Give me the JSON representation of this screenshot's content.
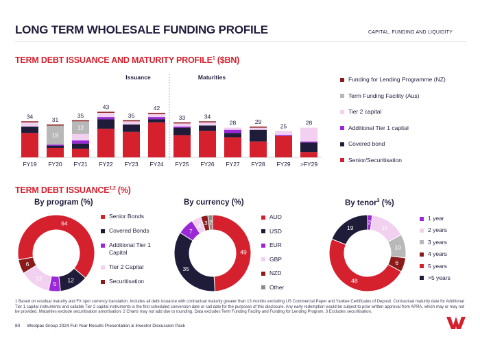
{
  "header": {
    "title": "LONG TERM WHOLESALE FUNDING PROFILE",
    "section": "CAPITAL, FUNDING AND LIQUIDITY"
  },
  "profile": {
    "heading": "TERM DEBT ISSUANCE AND MATURITY PROFILE",
    "heading_sup": "1",
    "heading_unit": " ($BN)",
    "issuance_label": "Issuance",
    "maturities_label": "Maturities"
  },
  "colors": {
    "senior": "#d5202e",
    "covered": "#1f1c3a",
    "at1": "#9a28d6",
    "tier2": "#f2d0f0",
    "tfp": "#b8b8b8",
    "fflp": "#8b1a1a",
    "securitisation": "#8b1a1a",
    "aud": "#d5202e",
    "usd": "#1f1c3a",
    "eur": "#9a28d6",
    "gbp": "#f2d0f0",
    "nzd": "#8b1a1a",
    "other": "#8c8c8c",
    "y1": "#9a28d6",
    "y2": "#f2d0f0",
    "y3": "#b8b8b8",
    "y4": "#8b1a1a",
    "y5": "#d5202e",
    "y5p": "#1f1c3a"
  },
  "chart_data": [
    {
      "type": "bar",
      "stacked": true,
      "title": "TERM DEBT ISSUANCE AND MATURITY PROFILE ($BN)",
      "categories": [
        "FY19",
        "FY20",
        "FY21",
        "FY22",
        "FY23",
        "FY24",
        "FY25",
        "FY26",
        "FY27",
        "FY28",
        "FY29",
        ">FY29"
      ],
      "groups": [
        {
          "name": "Issuance",
          "categories": [
            "FY19",
            "FY20",
            "FY21",
            "FY22",
            "FY23",
            "FY24"
          ]
        },
        {
          "name": "Maturities",
          "categories": [
            "FY25",
            "FY26",
            "FY27",
            "FY28",
            "FY29",
            ">FY29"
          ]
        }
      ],
      "totals": [
        34,
        31,
        35,
        43,
        35,
        42,
        33,
        34,
        28,
        29,
        25,
        28
      ],
      "series": [
        {
          "name": "Senior/Securitisation",
          "color_key": "senior",
          "values": [
            23,
            9,
            8,
            27,
            24,
            33,
            21,
            25,
            19,
            15,
            20,
            5
          ]
        },
        {
          "name": "Covered bond",
          "color_key": "covered",
          "values": [
            6,
            2,
            5,
            9,
            7,
            3,
            7,
            5,
            4,
            11,
            0,
            9
          ]
        },
        {
          "name": "Additional Tier 1 capital",
          "color_key": "at1",
          "values": [
            0,
            1,
            3,
            2,
            0,
            2,
            1,
            0,
            3,
            0,
            1,
            1
          ]
        },
        {
          "name": "Tier 2 capital",
          "color_key": "tier2",
          "values": [
            4,
            0,
            6,
            4,
            3,
            3,
            3,
            3,
            2,
            2,
            4,
            13
          ]
        },
        {
          "name": "Term Funding Facility (Aus)",
          "color_key": "tfp",
          "values": [
            0,
            18,
            12,
            0,
            0,
            0,
            0,
            0,
            0,
            0,
            0,
            0
          ]
        },
        {
          "name": "Funding for Lending Programme (NZ)",
          "color_key": "fflp",
          "values": [
            1,
            1,
            1,
            1,
            1,
            1,
            1,
            1,
            0,
            1,
            0,
            0
          ]
        }
      ],
      "inner_labels": [
        {
          "category": "FY20",
          "series": "Term Funding Facility (Aus)",
          "text": "18"
        },
        {
          "category": "FY21",
          "series": "Term Funding Facility (Aus)",
          "text": "12"
        }
      ],
      "legend": [
        "Funding for Lending Programme (NZ)",
        "Term Funding Facility (Aus)",
        "Tier 2 capital",
        "Additional Tier 1 capital",
        "Covered bond",
        "Senior/Securitisation"
      ]
    },
    {
      "type": "pie",
      "donut": true,
      "title": "By program (%)",
      "slices": [
        {
          "label": "Senior Bonds",
          "value": 64,
          "color_key": "senior"
        },
        {
          "label": "Covered Bonds",
          "value": 12,
          "color_key": "covered"
        },
        {
          "label": "Additional Tier 1 Capital",
          "value": 5,
          "color_key": "at1"
        },
        {
          "label": "Tier 2 Capital",
          "value": 13,
          "color_key": "tier2"
        },
        {
          "label": "Securitisation",
          "value": 6,
          "color_key": "securitisation"
        }
      ]
    },
    {
      "type": "pie",
      "donut": true,
      "title": "By currency (%)",
      "slices": [
        {
          "label": "AUD",
          "value": 49,
          "color_key": "aud"
        },
        {
          "label": "USD",
          "value": 35,
          "color_key": "usd"
        },
        {
          "label": "EUR",
          "value": 7,
          "color_key": "eur"
        },
        {
          "label": "GBP",
          "value": 4,
          "color_key": "gbp"
        },
        {
          "label": "NZD",
          "value": 3,
          "color_key": "nzd"
        },
        {
          "label": "Other",
          "value": 2,
          "color_key": "other"
        }
      ]
    },
    {
      "type": "pie",
      "donut": true,
      "title": "By tenor",
      "title_sup": "3",
      "title_unit": " (%)",
      "slices": [
        {
          "label": "1 year",
          "value": 2,
          "color_key": "y1"
        },
        {
          "label": "2 years",
          "value": 15,
          "color_key": "y2"
        },
        {
          "label": "3 years",
          "value": 10,
          "color_key": "y3"
        },
        {
          "label": "4 years",
          "value": 6,
          "color_key": "y4"
        },
        {
          "label": "5 years",
          "value": 48,
          "color_key": "y5"
        },
        {
          "label": ">5 years",
          "value": 19,
          "color_key": "y5p"
        }
      ]
    }
  ],
  "issuance_section": {
    "heading": "TERM DEBT ISSUANCE",
    "heading_sup": "1,2",
    "heading_unit": " (%)"
  },
  "footnote": "1 Based on residual maturity and FX spot currency translation. Includes all debt issuance with contractual maturity greater than 13 months excluding US Commercial Paper and Yankee Certificates of Deposit. Contractual maturity date for Additional Tier 1 capital instruments and callable Tier 2 capital instruments is the first scheduled conversion date or call date for the purposes of this disclosure. Any early redemption would be subject to prior written approval from APRA, which may or may not be provided. Maturities exclude securitisation amortisation. 2 Charts may not add due to rounding. Data excludes Term Funding Facility and Funding for Lending Program. 3 Excludes securitisation.",
  "footer": {
    "page": "80",
    "deck": "Westpac Group 2024 Full Year Results Presentation & Investor Discussion Pack"
  }
}
